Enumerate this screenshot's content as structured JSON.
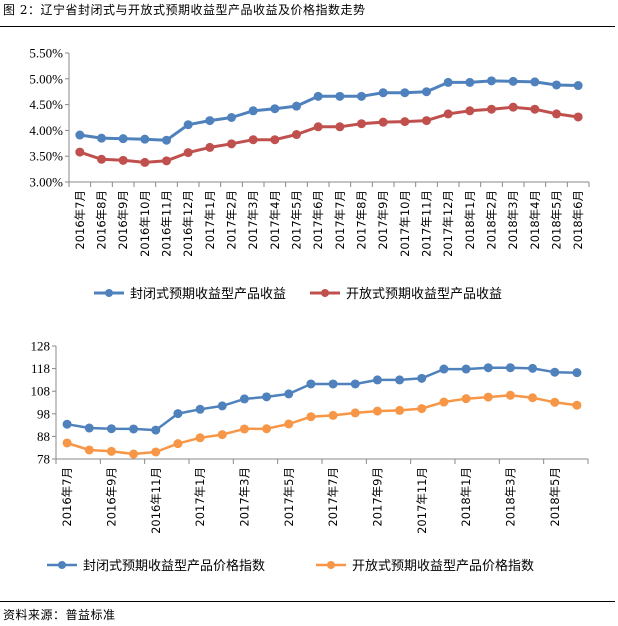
{
  "figure": {
    "title": "图 2：辽宁省封闭式与开放式预期收益型产品收益及价格指数走势",
    "source": "资料来源：普益标准"
  },
  "colors": {
    "closed_yield": "#4F81BD",
    "open_yield": "#C0504D",
    "closed_index": "#4F81BD",
    "open_index": "#F79646",
    "axis": "#888888"
  },
  "chart_data": [
    {
      "type": "line",
      "title": "",
      "xlabel": "",
      "ylabel": "",
      "ylim": [
        3.0,
        5.5
      ],
      "yticks": [
        "3.00%",
        "3.50%",
        "4.00%",
        "4.50%",
        "5.00%",
        "5.50%"
      ],
      "ytick_values": [
        3.0,
        3.5,
        4.0,
        4.5,
        5.0,
        5.5
      ],
      "grid": false,
      "legend_position": "bottom",
      "x": [
        "2016年7月",
        "2016年8月",
        "2016年9月",
        "2016年10月",
        "2016年11月",
        "2016年12月",
        "2017年1月",
        "2017年2月",
        "2017年3月",
        "2017年4月",
        "2017年5月",
        "2017年6月",
        "2017年7月",
        "2017年8月",
        "2017年9月",
        "2017年10月",
        "2017年11月",
        "2017年12月",
        "2018年1月",
        "2018年2月",
        "2018年3月",
        "2018年4月",
        "2018年5月",
        "2018年6月"
      ],
      "xtick_labels": [
        "2016年7月",
        "2016年8月",
        "2016年9月",
        "2016年10月",
        "2016年11月",
        "2016年12月",
        "2017年1月",
        "2017年2月",
        "2017年3月",
        "2017年4月",
        "2017年5月",
        "2017年6月",
        "2017年7月",
        "2017年8月",
        "2017年9月",
        "2017年10月",
        "2017年11月",
        "2017年12月",
        "2018年1月",
        "2018年2月",
        "2018年3月",
        "2018年4月",
        "2018年5月",
        "2018年6月"
      ],
      "series": [
        {
          "name": "封闭式预期收益型产品收益",
          "color_key": "closed_yield",
          "values": [
            3.91,
            3.85,
            3.84,
            3.83,
            3.81,
            4.11,
            4.19,
            4.25,
            4.38,
            4.42,
            4.47,
            4.66,
            4.66,
            4.66,
            4.73,
            4.73,
            4.75,
            4.93,
            4.93,
            4.96,
            4.95,
            4.94,
            4.88,
            4.87
          ]
        },
        {
          "name": "开放式预期收益型产品收益",
          "color_key": "open_yield",
          "values": [
            3.58,
            3.44,
            3.42,
            3.38,
            3.41,
            3.57,
            3.67,
            3.74,
            3.82,
            3.82,
            3.92,
            4.07,
            4.07,
            4.13,
            4.16,
            4.17,
            4.19,
            4.32,
            4.38,
            4.41,
            4.45,
            4.41,
            4.32,
            4.26
          ]
        }
      ]
    },
    {
      "type": "line",
      "title": "",
      "xlabel": "",
      "ylabel": "",
      "ylim": [
        78,
        128
      ],
      "yticks": [
        "78",
        "88",
        "98",
        "108",
        "118",
        "128"
      ],
      "ytick_values": [
        78,
        88,
        98,
        108,
        118,
        128
      ],
      "grid": false,
      "legend_position": "bottom",
      "x": [
        "2016年7月",
        "2016年8月",
        "2016年9月",
        "2016年10月",
        "2016年11月",
        "2016年12月",
        "2017年1月",
        "2017年2月",
        "2017年3月",
        "2017年4月",
        "2017年5月",
        "2017年6月",
        "2017年7月",
        "2017年8月",
        "2017年9月",
        "2017年10月",
        "2017年11月",
        "2017年12月",
        "2018年1月",
        "2018年2月",
        "2018年3月",
        "2018年4月",
        "2018年5月",
        "2018年6月"
      ],
      "xtick_labels": [
        "2016年7月",
        "",
        "2016年9月",
        "",
        "2016年11月",
        "",
        "2017年1月",
        "",
        "2017年3月",
        "",
        "2017年5月",
        "",
        "2017年7月",
        "",
        "2017年9月",
        "",
        "2017年11月",
        "",
        "2018年1月",
        "",
        "2018年3月",
        "",
        "2018年5月",
        ""
      ],
      "series": [
        {
          "name": "封闭式预期收益型产品价格指数",
          "color_key": "closed_index",
          "values": [
            93.4,
            91.7,
            91.4,
            91.3,
            90.8,
            98.1,
            100.0,
            101.5,
            104.6,
            105.5,
            106.8,
            111.2,
            111.2,
            111.2,
            113.0,
            113.0,
            113.7,
            117.8,
            117.8,
            118.4,
            118.4,
            118.1,
            116.4,
            116.2
          ]
        },
        {
          "name": "开放式预期收益型产品价格指数",
          "color_key": "open_index",
          "values": [
            85.1,
            82.0,
            81.4,
            80.2,
            81.1,
            84.8,
            87.4,
            88.8,
            91.3,
            91.4,
            93.5,
            96.7,
            97.3,
            98.4,
            99.2,
            99.5,
            100.3,
            103.2,
            104.7,
            105.4,
            106.2,
            105.1,
            103.1,
            101.8
          ]
        }
      ]
    }
  ]
}
